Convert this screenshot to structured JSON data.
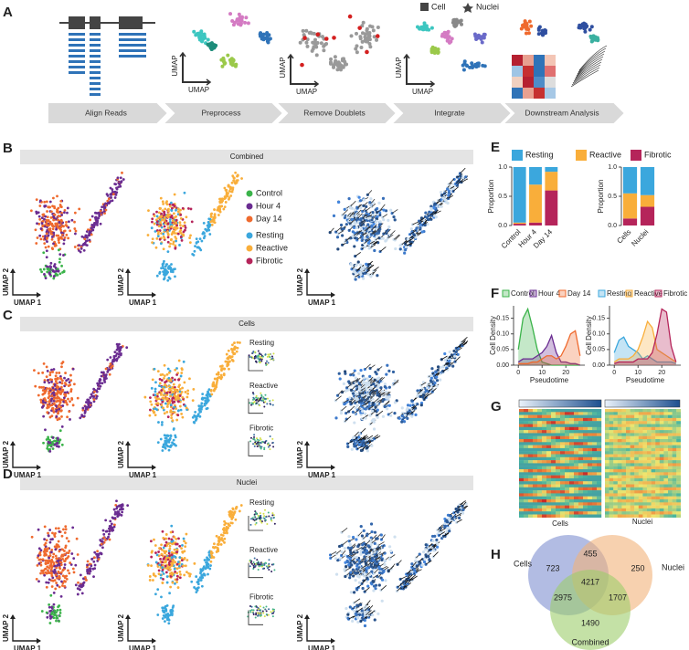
{
  "panel_letters": [
    "A",
    "B",
    "C",
    "D",
    "E",
    "F",
    "G",
    "H"
  ],
  "pipeline": {
    "steps": [
      "Align Reads",
      "Preprocess",
      "Remove Doublets",
      "Integrate",
      "Downstream Analysis"
    ],
    "legend": [
      "Cell",
      "Nuclei"
    ],
    "axis": "UMAP"
  },
  "sections": [
    "Combined",
    "Cells",
    "Nuclei"
  ],
  "umap_axes": {
    "x": "UMAP 1",
    "y": "UMAP 2"
  },
  "umap_legend": {
    "condition": [
      {
        "name": "Control",
        "color": "#3bb34a"
      },
      {
        "name": "Hour 4",
        "color": "#6a2c91"
      },
      {
        "name": "Day 14",
        "color": "#ef6a2e"
      }
    ],
    "state": [
      {
        "name": "Resting",
        "color": "#3ba7dd"
      },
      {
        "name": "Reactive",
        "color": "#f9ae3a"
      },
      {
        "name": "Fibrotic",
        "color": "#b5245a"
      }
    ]
  },
  "heatmap": {
    "labels": [
      "Cells",
      "Nuclei"
    ]
  },
  "venn": {
    "sets": [
      "Cells",
      "Nuclei",
      "Combined"
    ],
    "regions": [
      723,
      455,
      250,
      4217,
      2975,
      1707,
      1490
    ]
  },
  "chart_data": [
    {
      "type": "bar",
      "stacked": true,
      "ylabel": "Proportion",
      "categories": [
        "Control",
        "Hour 4",
        "Day 14"
      ],
      "series": [
        {
          "name": "Resting",
          "color": "#3ba7dd",
          "values": [
            0.95,
            0.3,
            0.08
          ]
        },
        {
          "name": "Reactive",
          "color": "#f9ae3a",
          "values": [
            0.02,
            0.65,
            0.32
          ]
        },
        {
          "name": "Fibrotic",
          "color": "#b5245a",
          "values": [
            0.03,
            0.05,
            0.6
          ]
        }
      ],
      "ylim": [
        0,
        1
      ],
      "yticks": [
        {
          "value": 0,
          "label": "0.0"
        },
        {
          "value": 0.5,
          "label": "0.5"
        },
        {
          "value": 1,
          "label": "1.0"
        }
      ]
    },
    {
      "type": "bar",
      "stacked": true,
      "ylabel": "Proportion",
      "categories": [
        "Cells",
        "Nuclei"
      ],
      "series": [
        {
          "name": "Resting",
          "color": "#3ba7dd",
          "values": [
            0.45,
            0.48
          ]
        },
        {
          "name": "Reactive",
          "color": "#f9ae3a",
          "values": [
            0.43,
            0.2
          ]
        },
        {
          "name": "Fibrotic",
          "color": "#b5245a",
          "values": [
            0.12,
            0.32
          ]
        }
      ],
      "ylim": [
        0,
        1
      ],
      "yticks": [
        {
          "value": 0,
          "label": "0.0"
        },
        {
          "value": 0.5,
          "label": "0.5"
        },
        {
          "value": 1,
          "label": "1.0"
        }
      ]
    },
    {
      "type": "density",
      "ylabel": "Cell Density",
      "xlabel": "Pseudotime",
      "x": [
        0,
        2,
        4,
        6,
        8,
        10,
        12,
        14,
        16,
        18,
        20,
        22,
        24,
        26
      ],
      "series": [
        {
          "name": "Control",
          "color": "#3bb34a",
          "values": [
            0.05,
            0.15,
            0.18,
            0.12,
            0.05,
            0.01,
            0.005,
            0,
            0,
            0,
            0,
            0,
            0,
            0
          ]
        },
        {
          "name": "Hour 4",
          "color": "#6a2c91",
          "values": [
            0.01,
            0.02,
            0.02,
            0.02,
            0.03,
            0.04,
            0.06,
            0.095,
            0.04,
            0.01,
            0.01,
            0.005,
            0.005,
            0
          ]
        },
        {
          "name": "Day 14",
          "color": "#ef6a2e",
          "values": [
            0.005,
            0.005,
            0.005,
            0.01,
            0.01,
            0.02,
            0.03,
            0.03,
            0.02,
            0.03,
            0.06,
            0.1,
            0.11,
            0.03
          ]
        }
      ],
      "xlim": [
        -2,
        28
      ],
      "xticks": [
        0,
        10,
        20
      ],
      "ylim": [
        0,
        0.19
      ],
      "yticks": [
        {
          "value": 0,
          "label": "0.00"
        },
        {
          "value": 0.05,
          "label": "0.05"
        },
        {
          "value": 0.1,
          "label": "0.10"
        },
        {
          "value": 0.15,
          "label": "0.15"
        }
      ]
    },
    {
      "type": "density",
      "ylabel": "Cell Density",
      "xlabel": "Pseudotime",
      "x": [
        0,
        2,
        4,
        6,
        8,
        10,
        12,
        14,
        16,
        18,
        20,
        22,
        24,
        26
      ],
      "series": [
        {
          "name": "Resting",
          "color": "#3ba7dd",
          "values": [
            0.04,
            0.08,
            0.09,
            0.06,
            0.05,
            0.04,
            0.02,
            0.03,
            0.02,
            0.01,
            0.01,
            0.01,
            0.01,
            0.005
          ]
        },
        {
          "name": "Reactive",
          "color": "#f9ae3a",
          "values": [
            0.01,
            0.02,
            0.02,
            0.02,
            0.03,
            0.05,
            0.09,
            0.14,
            0.12,
            0.05,
            0.04,
            0.03,
            0.02,
            0.01
          ]
        },
        {
          "name": "Fibrotic",
          "color": "#b5245a",
          "values": [
            0.005,
            0.01,
            0.01,
            0.01,
            0.01,
            0.02,
            0.02,
            0.02,
            0.04,
            0.1,
            0.18,
            0.17,
            0.06,
            0.01
          ]
        }
      ],
      "xlim": [
        -2,
        28
      ],
      "xticks": [
        0,
        10,
        20
      ],
      "ylim": [
        0,
        0.19
      ],
      "yticks": [
        {
          "value": 0,
          "label": "0.00"
        },
        {
          "value": 0.05,
          "label": "0.05"
        },
        {
          "value": 0.1,
          "label": "0.10"
        },
        {
          "value": 0.15,
          "label": "0.15"
        }
      ]
    }
  ]
}
